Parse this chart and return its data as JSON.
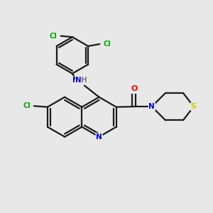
{
  "bg_color": "#e8e8e8",
  "atom_colors": {
    "C": "#000000",
    "N": "#0000cc",
    "O": "#ff0000",
    "S": "#cccc00",
    "Cl": "#00aa00",
    "H": "#808080"
  },
  "bond_color": "#1a1a1a",
  "lw": 1.6
}
